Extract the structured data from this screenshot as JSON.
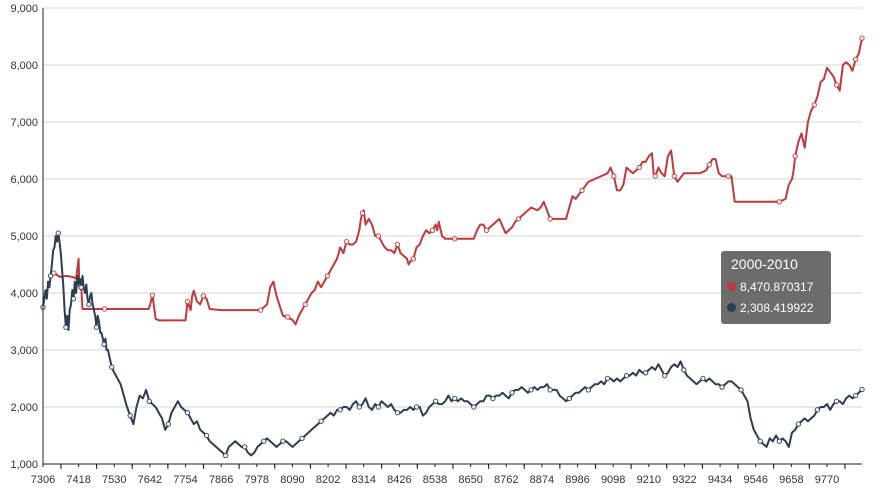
{
  "chart_data": {
    "type": "line",
    "title": "",
    "xlabel": "",
    "ylabel": "",
    "x_ticks": [
      "7306",
      "7418",
      "7530",
      "7642",
      "7754",
      "7866",
      "7978",
      "8090",
      "8202",
      "8314",
      "8426",
      "8538",
      "8650",
      "8762",
      "8874",
      "8986",
      "9098",
      "9210",
      "9322",
      "9434",
      "9546",
      "9658",
      "9770"
    ],
    "xlim": [
      7306,
      9880
    ],
    "ylim": [
      1000,
      9000
    ],
    "y_ticks": [
      "1,000",
      "2,000",
      "3,000",
      "4,000",
      "5,000",
      "6,000",
      "7,000",
      "8,000",
      "9,000"
    ],
    "y_tick_values": [
      1000,
      2000,
      3000,
      4000,
      5000,
      6000,
      7000,
      8000,
      9000
    ],
    "grid": true,
    "legend": "none",
    "series": [
      {
        "color": "#c0393b",
        "x": [
          7340,
          7360,
          7380,
          7400,
          7410,
          7418,
          7420,
          7425,
          7430,
          7440,
          7460,
          7480,
          7500,
          7530,
          7560,
          7600,
          7638,
          7642,
          7650,
          7660,
          7670,
          7700,
          7730,
          7754,
          7760,
          7770,
          7775,
          7780,
          7790,
          7800,
          7810,
          7820,
          7830,
          7866,
          7900,
          7950,
          7990,
          8010,
          8020,
          8030,
          8040,
          8060,
          8075,
          8080,
          8090,
          8100,
          8110,
          8120,
          8130,
          8140,
          8150,
          8160,
          8170,
          8180,
          8200,
          8210,
          8220,
          8230,
          8240,
          8250,
          8260,
          8270,
          8280,
          8290,
          8300,
          8305,
          8310,
          8314,
          8320,
          8330,
          8340,
          8350,
          8360,
          8370,
          8380,
          8390,
          8400,
          8410,
          8420,
          8430,
          8440,
          8450,
          8455,
          8460,
          8470,
          8480,
          8490,
          8500,
          8510,
          8520,
          8530,
          8540,
          8545,
          8550,
          8560,
          8570,
          8600,
          8640,
          8660,
          8670,
          8680,
          8690,
          8700,
          8720,
          8740,
          8760,
          8780,
          8790,
          8800,
          8820,
          8840,
          8860,
          8870,
          8880,
          8900,
          8940,
          8950,
          8960,
          8970,
          8980,
          9000,
          9020,
          9040,
          9060,
          9080,
          9090,
          9100,
          9110,
          9120,
          9130,
          9140,
          9160,
          9180,
          9190,
          9200,
          9210,
          9220,
          9225,
          9230,
          9240,
          9250,
          9260,
          9270,
          9280,
          9290,
          9300,
          9320,
          9340,
          9370,
          9390,
          9400,
          9410,
          9420,
          9430,
          9440,
          9450,
          9460,
          9470,
          9480,
          9500,
          9540,
          9580,
          9620,
          9640,
          9650,
          9655,
          9660,
          9665,
          9670,
          9680,
          9690,
          9700,
          9710,
          9720,
          9730,
          9740,
          9750,
          9760,
          9770,
          9790,
          9800,
          9810,
          9820,
          9830,
          9840,
          9850,
          9860,
          9870,
          9880
        ],
        "y": [
          4350,
          4280,
          4300,
          4280,
          4250,
          4600,
          4150,
          4200,
          3720,
          3720,
          3720,
          3720,
          3720,
          3720,
          3720,
          3720,
          3720,
          3780,
          3960,
          3550,
          3520,
          3520,
          3520,
          3520,
          3850,
          3700,
          3950,
          4040,
          3850,
          3800,
          3950,
          3900,
          3720,
          3700,
          3700,
          3700,
          3700,
          3800,
          4100,
          4200,
          3950,
          3600,
          3580,
          3550,
          3530,
          3450,
          3600,
          3700,
          3800,
          3900,
          4000,
          4050,
          4200,
          4100,
          4300,
          4400,
          4500,
          4600,
          4800,
          4700,
          4900,
          4850,
          4850,
          4900,
          5100,
          5300,
          5400,
          5450,
          5200,
          5300,
          5200,
          5000,
          5000,
          4900,
          4800,
          4750,
          4750,
          4700,
          4850,
          4700,
          4650,
          4600,
          4500,
          4550,
          4600,
          4800,
          4850,
          5000,
          5100,
          5050,
          5100,
          5200,
          5100,
          5250,
          5000,
          4950,
          4950,
          4950,
          4950,
          5100,
          5200,
          5200,
          5100,
          5200,
          5300,
          5050,
          5150,
          5250,
          5300,
          5400,
          5500,
          5450,
          5500,
          5600,
          5300,
          5300,
          5300,
          5500,
          5700,
          5650,
          5800,
          5950,
          6000,
          6050,
          6100,
          6200,
          6050,
          5800,
          5800,
          5900,
          6200,
          6100,
          6200,
          6300,
          6300,
          6400,
          6450,
          6100,
          6050,
          6200,
          6100,
          6050,
          6400,
          6500,
          6050,
          5950,
          6100,
          6100,
          6100,
          6150,
          6250,
          6350,
          6350,
          6100,
          6050,
          6050,
          6050,
          6050,
          5600,
          5600,
          5600,
          5600,
          5600,
          5650,
          5900,
          5950,
          6000,
          6150,
          6400,
          6650,
          6800,
          6550,
          7000,
          7200,
          7300,
          7450,
          7700,
          7750,
          7950,
          7800,
          7650,
          7550,
          8000,
          8050,
          8000,
          7900,
          8100,
          8200,
          8470.870317
        ]
      },
      {
        "color": "#2c3e50",
        "x": [
          7306,
          7310,
          7314,
          7318,
          7322,
          7326,
          7330,
          7334,
          7338,
          7342,
          7346,
          7350,
          7354,
          7358,
          7362,
          7366,
          7370,
          7374,
          7378,
          7382,
          7386,
          7390,
          7394,
          7398,
          7402,
          7406,
          7410,
          7414,
          7418,
          7422,
          7426,
          7430,
          7434,
          7438,
          7442,
          7446,
          7450,
          7454,
          7458,
          7462,
          7466,
          7470,
          7474,
          7478,
          7482,
          7486,
          7490,
          7494,
          7498,
          7502,
          7506,
          7510,
          7514,
          7518,
          7522,
          7530,
          7540,
          7550,
          7560,
          7570,
          7580,
          7590,
          7600,
          7610,
          7620,
          7630,
          7640,
          7650,
          7660,
          7670,
          7680,
          7690,
          7700,
          7710,
          7720,
          7730,
          7740,
          7750,
          7760,
          7770,
          7780,
          7790,
          7800,
          7810,
          7820,
          7830,
          7840,
          7850,
          7860,
          7870,
          7880,
          7890,
          7900,
          7910,
          7920,
          7930,
          7940,
          7950,
          7960,
          7970,
          7980,
          7990,
          8000,
          8010,
          8020,
          8030,
          8040,
          8050,
          8060,
          8070,
          8080,
          8090,
          8100,
          8110,
          8120,
          8130,
          8140,
          8150,
          8160,
          8170,
          8180,
          8190,
          8200,
          8210,
          8220,
          8230,
          8240,
          8250,
          8260,
          8270,
          8280,
          8290,
          8300,
          8310,
          8320,
          8330,
          8340,
          8350,
          8360,
          8370,
          8380,
          8390,
          8400,
          8410,
          8420,
          8430,
          8440,
          8450,
          8460,
          8470,
          8480,
          8490,
          8500,
          8510,
          8520,
          8530,
          8540,
          8550,
          8560,
          8570,
          8580,
          8590,
          8600,
          8610,
          8620,
          8630,
          8640,
          8650,
          8660,
          8670,
          8680,
          8690,
          8700,
          8710,
          8720,
          8730,
          8740,
          8750,
          8760,
          8770,
          8780,
          8790,
          8800,
          8810,
          8820,
          8830,
          8840,
          8850,
          8860,
          8870,
          8880,
          8890,
          8900,
          8910,
          8920,
          8930,
          8940,
          8950,
          8960,
          8970,
          8980,
          8990,
          9000,
          9010,
          9020,
          9030,
          9040,
          9050,
          9060,
          9070,
          9080,
          9090,
          9100,
          9110,
          9120,
          9130,
          9140,
          9150,
          9160,
          9170,
          9180,
          9190,
          9200,
          9210,
          9220,
          9230,
          9240,
          9250,
          9260,
          9270,
          9280,
          9290,
          9300,
          9310,
          9320,
          9330,
          9340,
          9350,
          9360,
          9370,
          9380,
          9390,
          9400,
          9410,
          9420,
          9430,
          9440,
          9450,
          9460,
          9470,
          9480,
          9490,
          9500,
          9510,
          9520,
          9530,
          9540,
          9550,
          9560,
          9570,
          9580,
          9590,
          9600,
          9610,
          9620,
          9630,
          9640,
          9650,
          9660,
          9670,
          9680,
          9690,
          9700,
          9710,
          9720,
          9730,
          9740,
          9750,
          9760,
          9770,
          9780,
          9790,
          9800,
          9810,
          9820,
          9830,
          9840,
          9850,
          9860,
          9870,
          9880
        ],
        "y": [
          3750,
          3900,
          4050,
          3900,
          4200,
          4100,
          4300,
          4500,
          4750,
          4800,
          5000,
          4900,
          5050,
          4900,
          4700,
          4400,
          4100,
          3700,
          3400,
          3600,
          3350,
          3700,
          3800,
          4050,
          3900,
          4200,
          4000,
          4300,
          4150,
          4250,
          4100,
          4300,
          4100,
          4000,
          4150,
          3900,
          3800,
          3950,
          4000,
          3800,
          3700,
          3600,
          3400,
          3600,
          3500,
          3300,
          3300,
          3200,
          3100,
          3200,
          3000,
          3000,
          2900,
          2800,
          2700,
          2600,
          2500,
          2400,
          2200,
          2000,
          1850,
          1700,
          2000,
          2200,
          2150,
          2300,
          2100,
          2050,
          2000,
          1900,
          1800,
          1600,
          1700,
          1900,
          2000,
          2100,
          2000,
          1950,
          1900,
          1800,
          1700,
          1750,
          1600,
          1550,
          1500,
          1400,
          1350,
          1300,
          1250,
          1200,
          1150,
          1300,
          1350,
          1400,
          1350,
          1300,
          1300,
          1200,
          1150,
          1200,
          1300,
          1350,
          1400,
          1450,
          1400,
          1350,
          1300,
          1350,
          1400,
          1400,
          1350,
          1300,
          1350,
          1400,
          1450,
          1500,
          1550,
          1600,
          1650,
          1700,
          1750,
          1800,
          1850,
          1900,
          1850,
          1950,
          1950,
          2000,
          2000,
          1950,
          2050,
          2100,
          2000,
          2050,
          2150,
          2000,
          1950,
          2050,
          2000,
          2100,
          2050,
          2000,
          2050,
          1950,
          1900,
          1900,
          1950,
          1950,
          2000,
          1950,
          2000,
          2000,
          1850,
          1900,
          2000,
          2050,
          2100,
          2050,
          2050,
          2100,
          2200,
          2100,
          2150,
          2100,
          2150,
          2100,
          2100,
          2050,
          2000,
          2050,
          2100,
          2100,
          2200,
          2200,
          2150,
          2200,
          2200,
          2250,
          2200,
          2150,
          2250,
          2300,
          2300,
          2350,
          2300,
          2250,
          2300,
          2350,
          2300,
          2350,
          2350,
          2400,
          2300,
          2300,
          2300,
          2200,
          2150,
          2100,
          2150,
          2200,
          2250,
          2250,
          2300,
          2350,
          2300,
          2350,
          2400,
          2400,
          2450,
          2400,
          2500,
          2500,
          2450,
          2500,
          2450,
          2500,
          2550,
          2550,
          2600,
          2550,
          2650,
          2600,
          2600,
          2650,
          2700,
          2650,
          2750,
          2650,
          2550,
          2600,
          2700,
          2750,
          2700,
          2800,
          2650,
          2550,
          2500,
          2450,
          2400,
          2450,
          2500,
          2450,
          2500,
          2450,
          2400,
          2400,
          2350,
          2400,
          2450,
          2450,
          2400,
          2350,
          2300,
          2200,
          2100,
          1800,
          1600,
          1500,
          1400,
          1350,
          1300,
          1450,
          1400,
          1500,
          1400,
          1450,
          1400,
          1300,
          1550,
          1600,
          1700,
          1750,
          1800,
          1750,
          1800,
          1850,
          1950,
          2000,
          2000,
          2050,
          1950,
          2050,
          2100,
          2100,
          2050,
          2150,
          2200,
          2150,
          2200,
          2250,
          2308.419922
        ]
      }
    ]
  },
  "tooltip": {
    "title": "2000-2010",
    "items": [
      {
        "value": "8,470.870317",
        "color": "#c0393b"
      },
      {
        "value": "2,308.419922",
        "color": "#2c3e50"
      }
    ]
  }
}
